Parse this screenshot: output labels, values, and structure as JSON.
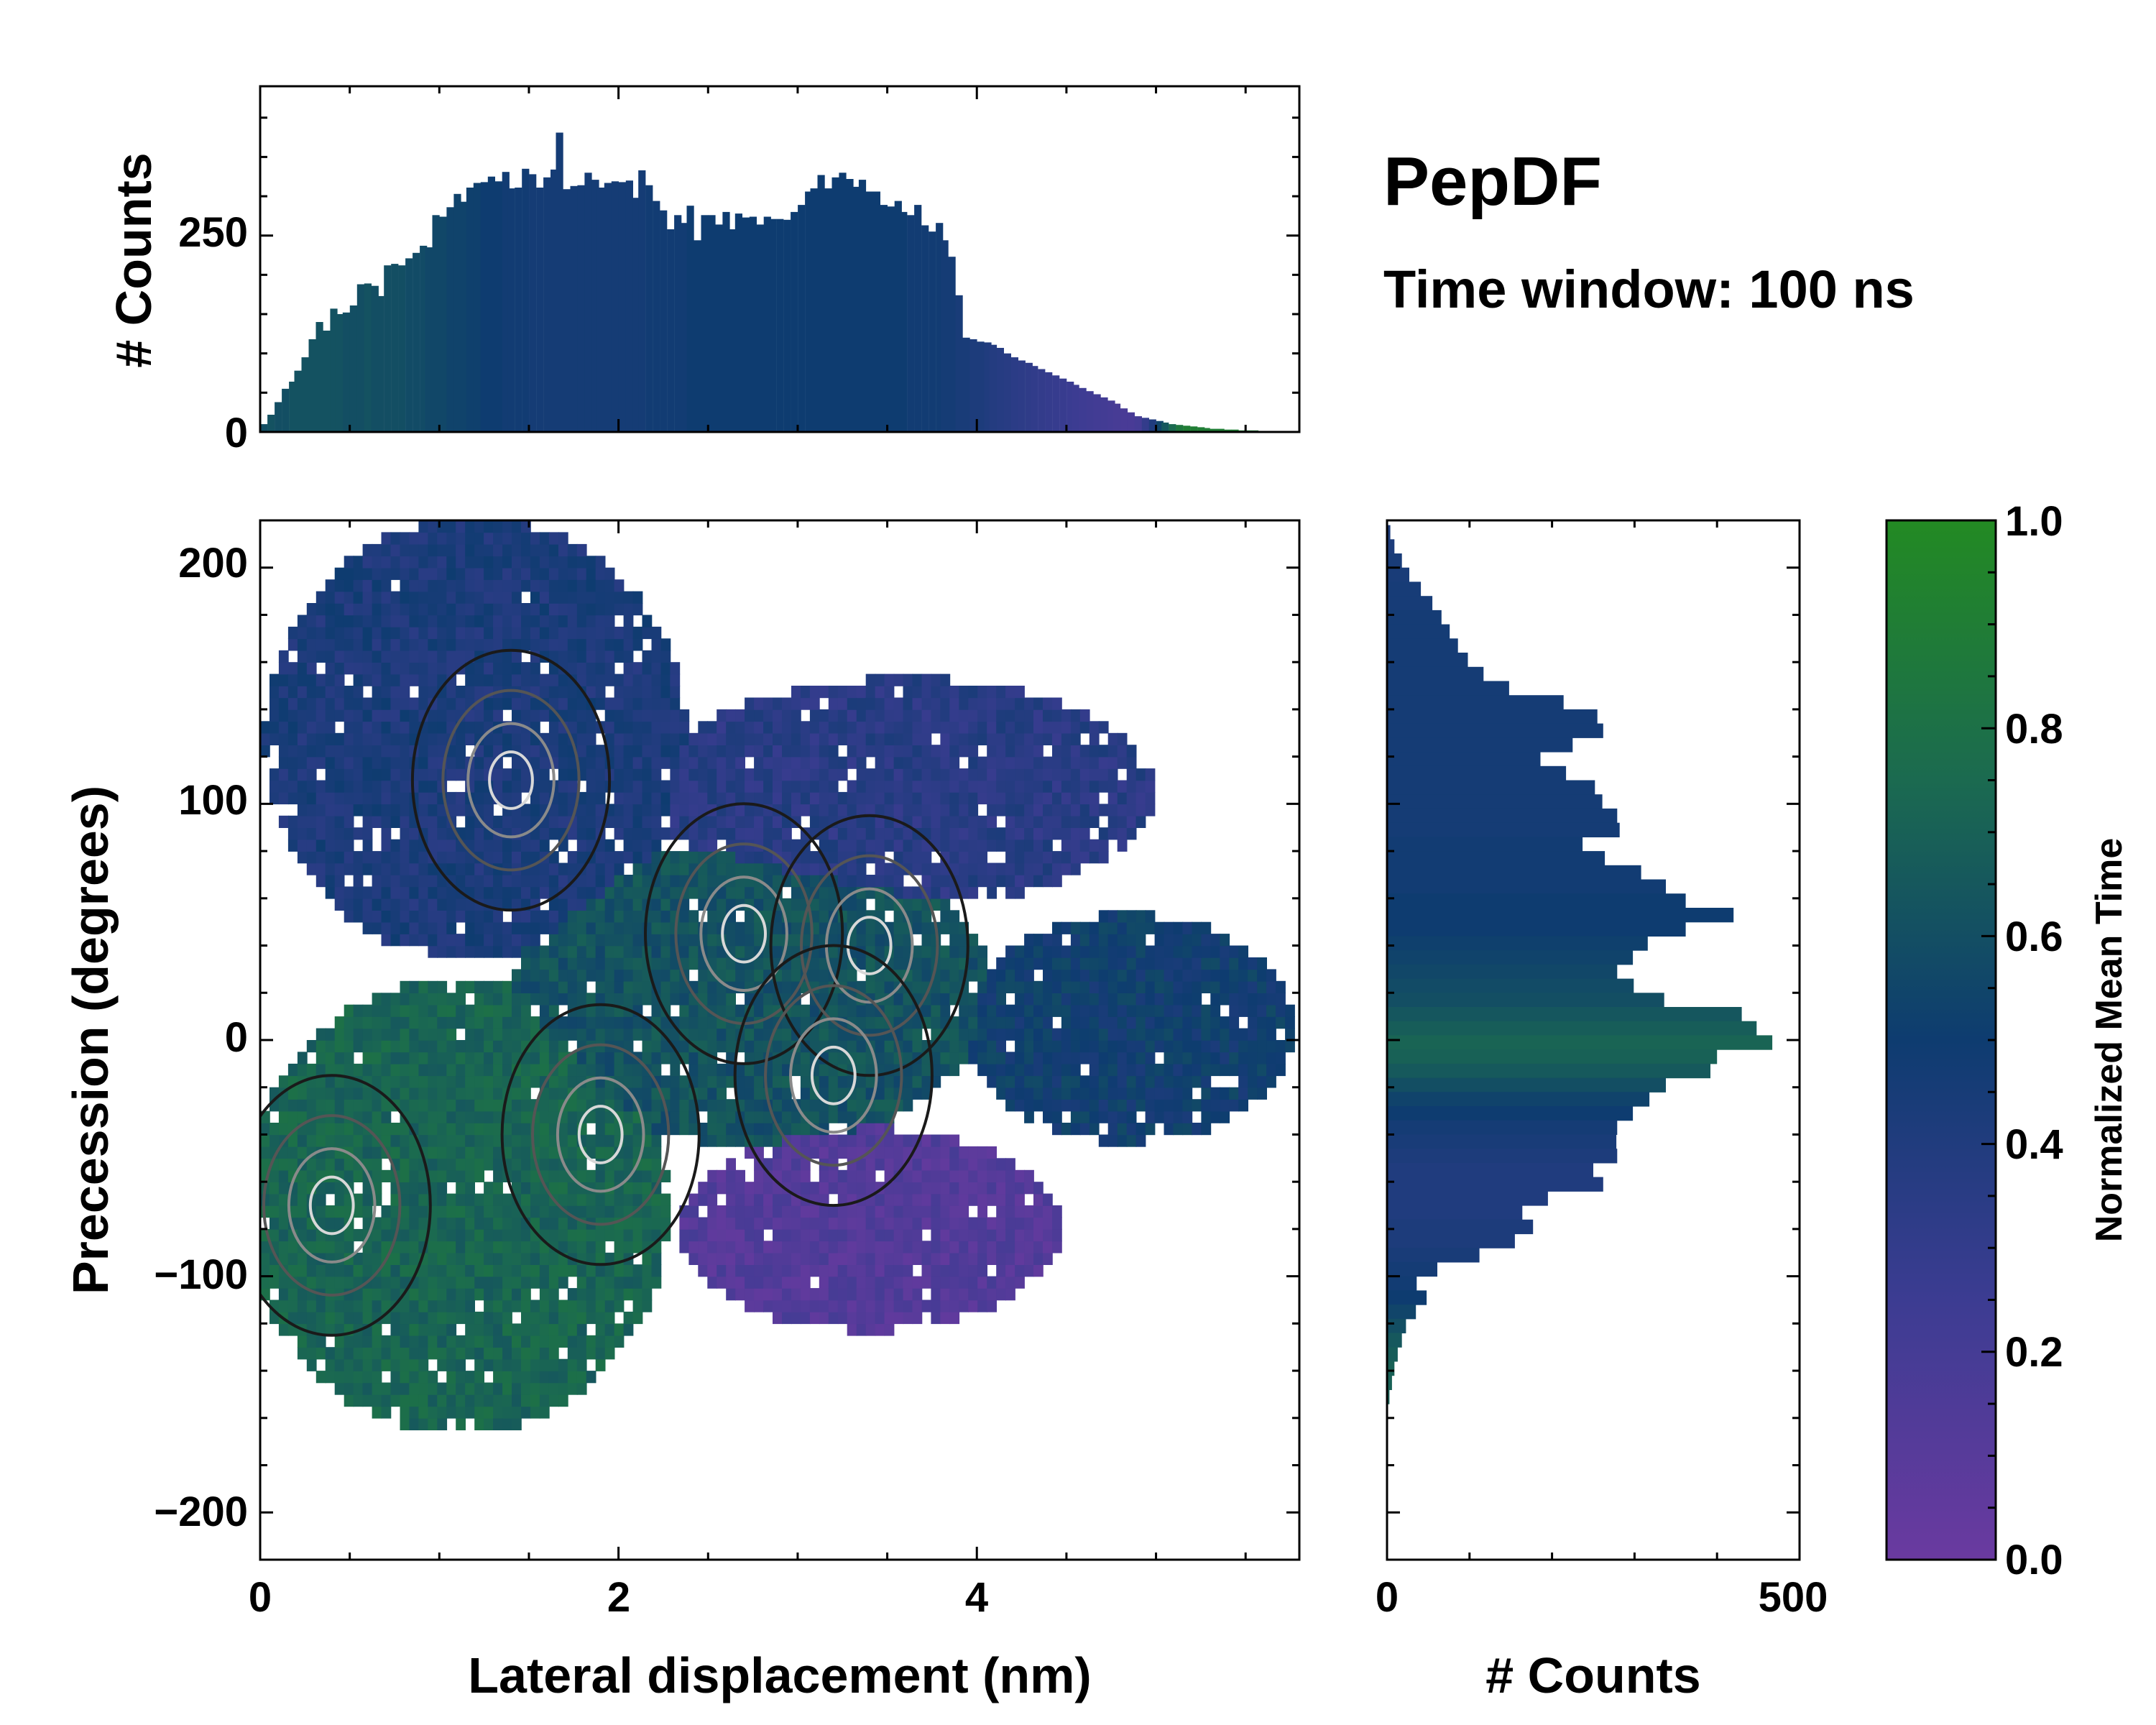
{
  "colors": {
    "low": "#6a3aa0",
    "mid": "#0d3c70",
    "high": "#238a23",
    "contour_outer": "#000000",
    "contour_inner": "#cfcfcf"
  },
  "figure": {
    "title": "PepDF",
    "subtitle": "Time window: 100 ns"
  },
  "chart_data": [
    {
      "id": "top-histogram",
      "type": "bar",
      "ylabel": "# Counts",
      "xlim": [
        0,
        5.8
      ],
      "ylim": [
        0,
        440
      ],
      "yticks": [
        "0",
        "250"
      ],
      "ytick_values": [
        0,
        250
      ],
      "note": "Histogram of lateral displacement, 150 bins; bars coloured by normalized mean time",
      "x": [
        0.02,
        0.06,
        0.1,
        0.14,
        0.18,
        0.21,
        0.25,
        0.29,
        0.33,
        0.37,
        0.41,
        0.44,
        0.48,
        0.52,
        0.56,
        0.6,
        0.64,
        0.67,
        0.71,
        0.75,
        0.79,
        0.83,
        0.87,
        0.91,
        0.94,
        0.98,
        1.02,
        1.06,
        1.1,
        1.14,
        1.17,
        1.21,
        1.25,
        1.29,
        1.33,
        1.37,
        1.4,
        1.44,
        1.48,
        1.52,
        1.56,
        1.6,
        1.64,
        1.67,
        1.71,
        1.75,
        1.79,
        1.83,
        1.87,
        1.9,
        1.94,
        1.98,
        2.02,
        2.06,
        2.1,
        2.13,
        2.17,
        2.21,
        2.25,
        2.29,
        2.33,
        2.37,
        2.4,
        2.44,
        2.48,
        2.52,
        2.56,
        2.6,
        2.63,
        2.67,
        2.71,
        2.75,
        2.79,
        2.83,
        2.86,
        2.9,
        2.94,
        2.98,
        3.02,
        3.06,
        3.09,
        3.13,
        3.17,
        3.21,
        3.25,
        3.29,
        3.33,
        3.36,
        3.4,
        3.44,
        3.48,
        3.52,
        3.56,
        3.59,
        3.63,
        3.67,
        3.71,
        3.75,
        3.79,
        3.82,
        3.86,
        3.9,
        3.94,
        3.98,
        4.02,
        4.06,
        4.09,
        4.13,
        4.17,
        4.21,
        4.25,
        4.29,
        4.32,
        4.36,
        4.4,
        4.44,
        4.48,
        4.52,
        4.55,
        4.59,
        4.63,
        4.67,
        4.71,
        4.75,
        4.78,
        4.82,
        4.86,
        4.9,
        4.94,
        4.98,
        5.02,
        5.05,
        5.09,
        5.13,
        5.17,
        5.21,
        5.25,
        5.28,
        5.32,
        5.36,
        5.4,
        5.44,
        5.48,
        5.51,
        5.55,
        5.59,
        5.63,
        5.67,
        5.71,
        5.75
      ],
      "values": [
        10,
        22,
        38,
        55,
        64,
        78,
        95,
        118,
        140,
        129,
        157,
        150,
        152,
        161,
        188,
        189,
        186,
        173,
        212,
        214,
        212,
        221,
        228,
        237,
        235,
        276,
        274,
        286,
        303,
        293,
        311,
        317,
        318,
        325,
        319,
        331,
        310,
        311,
        335,
        328,
        311,
        324,
        334,
        381,
        309,
        313,
        314,
        330,
        321,
        311,
        317,
        319,
        318,
        320,
        298,
        333,
        314,
        294,
        282,
        258,
        276,
        266,
        288,
        244,
        276,
        276,
        264,
        280,
        258,
        278,
        273,
        274,
        264,
        274,
        271,
        271,
        270,
        280,
        289,
        306,
        310,
        327,
        310,
        324,
        330,
        322,
        312,
        321,
        306,
        306,
        289,
        287,
        294,
        280,
        276,
        289,
        263,
        255,
        266,
        244,
        223,
        174,
        120,
        118,
        115,
        114,
        111,
        107,
        100,
        95,
        91,
        88,
        84,
        80,
        76,
        72,
        68,
        64,
        60,
        56,
        52,
        48,
        44,
        40,
        36,
        30,
        25,
        20,
        18,
        16,
        14,
        12,
        10,
        9,
        8,
        7,
        6,
        5,
        4,
        4,
        3,
        3,
        2,
        2,
        2,
        1,
        1,
        1,
        1,
        1
      ],
      "color_values": [
        0.6,
        0.62,
        0.6,
        0.6,
        0.62,
        0.62,
        0.62,
        0.62,
        0.62,
        0.62,
        0.62,
        0.62,
        0.6,
        0.6,
        0.6,
        0.62,
        0.6,
        0.6,
        0.6,
        0.6,
        0.6,
        0.58,
        0.58,
        0.58,
        0.56,
        0.56,
        0.56,
        0.54,
        0.54,
        0.54,
        0.52,
        0.52,
        0.5,
        0.5,
        0.5,
        0.48,
        0.48,
        0.48,
        0.48,
        0.46,
        0.46,
        0.46,
        0.46,
        0.46,
        0.46,
        0.46,
        0.46,
        0.46,
        0.46,
        0.46,
        0.46,
        0.46,
        0.46,
        0.46,
        0.46,
        0.46,
        0.48,
        0.48,
        0.48,
        0.48,
        0.48,
        0.48,
        0.5,
        0.5,
        0.5,
        0.5,
        0.5,
        0.5,
        0.5,
        0.5,
        0.5,
        0.5,
        0.5,
        0.5,
        0.5,
        0.5,
        0.5,
        0.5,
        0.5,
        0.5,
        0.5,
        0.5,
        0.5,
        0.5,
        0.5,
        0.5,
        0.5,
        0.5,
        0.5,
        0.5,
        0.5,
        0.5,
        0.5,
        0.5,
        0.48,
        0.48,
        0.48,
        0.48,
        0.48,
        0.46,
        0.46,
        0.44,
        0.44,
        0.42,
        0.42,
        0.4,
        0.38,
        0.37,
        0.36,
        0.34,
        0.33,
        0.32,
        0.31,
        0.3,
        0.29,
        0.28,
        0.27,
        0.26,
        0.25,
        0.24,
        0.23,
        0.22,
        0.21,
        0.2,
        0.19,
        0.18,
        0.18,
        0.2,
        0.3,
        0.4,
        0.55,
        0.65,
        0.75,
        0.85,
        0.9,
        0.9,
        0.9,
        0.9,
        0.9,
        0.9,
        0.9,
        0.9,
        0.9,
        0.9,
        0.9,
        0.9,
        0.9,
        0.9,
        0.9,
        0.9
      ]
    },
    {
      "id": "main-heatmap",
      "type": "heatmap",
      "xlabel": "Lateral displacement (nm)",
      "ylabel": "Precession (degrees)",
      "xlim": [
        0,
        5.8
      ],
      "ylim": [
        -220,
        220
      ],
      "xticks": [
        "0",
        "2",
        "4"
      ],
      "xtick_values": [
        0,
        2,
        4
      ],
      "yticks": [
        "200",
        "100",
        "0",
        "−100",
        "−200"
      ],
      "ytick_values": [
        200,
        100,
        0,
        -100,
        -200
      ],
      "note": "2D histogram coloured by normalized mean time with density contours",
      "regions": [
        {
          "name": "upper-left lobe",
          "x_range": [
            0.1,
            2.3
          ],
          "y_range": [
            40,
            215
          ],
          "time": 0.42
        },
        {
          "name": "upper-right lobe",
          "x_range": [
            2.3,
            4.9
          ],
          "y_range": [
            60,
            150
          ],
          "time": 0.35
        },
        {
          "name": "central core",
          "x_range": [
            1.5,
            4.0
          ],
          "y_range": [
            -40,
            80
          ],
          "time": 0.62
        },
        {
          "name": "left lower lobe",
          "x_range": [
            0.0,
            2.2
          ],
          "y_range": [
            -160,
            20
          ],
          "time": 0.72
        },
        {
          "name": "right tail",
          "x_range": [
            4.0,
            5.7
          ],
          "y_range": [
            -40,
            50
          ],
          "time": 0.5
        },
        {
          "name": "lower-right lobe",
          "x_range": [
            2.4,
            4.4
          ],
          "y_range": [
            -120,
            -40
          ],
          "time": 0.12
        }
      ],
      "density_peaks": [
        {
          "x": 1.4,
          "y": 110
        },
        {
          "x": 2.7,
          "y": 45
        },
        {
          "x": 3.4,
          "y": 40
        },
        {
          "x": 3.2,
          "y": -15
        },
        {
          "x": 1.9,
          "y": -40
        },
        {
          "x": 0.4,
          "y": -70
        }
      ]
    },
    {
      "id": "right-histogram",
      "type": "bar",
      "orientation": "horizontal",
      "xlabel": "# Counts",
      "xlim": [
        0,
        500
      ],
      "xticks": [
        "0",
        "500"
      ],
      "xtick_values": [
        0,
        500
      ],
      "ylim": [
        -220,
        220
      ],
      "note": "Histogram of precession, bars coloured by normalized mean time",
      "y": [
        215,
        209,
        203,
        197,
        191,
        185,
        179,
        173,
        167,
        161,
        155,
        149,
        143,
        137,
        131,
        125,
        119,
        113,
        107,
        101,
        95,
        89,
        83,
        77,
        71,
        65,
        59,
        53,
        47,
        41,
        35,
        29,
        23,
        17,
        11,
        5,
        -1,
        -7,
        -13,
        -19,
        -25,
        -31,
        -37,
        -43,
        -49,
        -55,
        -61,
        -67,
        -73,
        -79,
        -85,
        -91,
        -97,
        -103,
        -109,
        -115,
        -121,
        -127,
        -133,
        -139,
        -145,
        -151,
        -157
      ],
      "values": [
        4,
        9,
        18,
        27,
        41,
        55,
        66,
        76,
        86,
        98,
        117,
        148,
        214,
        255,
        262,
        225,
        186,
        217,
        252,
        261,
        279,
        282,
        237,
        264,
        308,
        338,
        362,
        420,
        362,
        316,
        298,
        279,
        299,
        336,
        430,
        448,
        467,
        400,
        392,
        338,
        318,
        298,
        279,
        278,
        279,
        250,
        262,
        195,
        164,
        177,
        155,
        112,
        61,
        36,
        48,
        35,
        23,
        18,
        13,
        9,
        6,
        3,
        1
      ],
      "color_values": [
        0.42,
        0.42,
        0.44,
        0.44,
        0.45,
        0.45,
        0.46,
        0.46,
        0.46,
        0.46,
        0.46,
        0.46,
        0.46,
        0.46,
        0.46,
        0.46,
        0.46,
        0.46,
        0.46,
        0.46,
        0.46,
        0.46,
        0.48,
        0.48,
        0.48,
        0.48,
        0.5,
        0.5,
        0.5,
        0.52,
        0.54,
        0.56,
        0.58,
        0.6,
        0.64,
        0.68,
        0.72,
        0.7,
        0.66,
        0.6,
        0.54,
        0.5,
        0.46,
        0.44,
        0.42,
        0.4,
        0.4,
        0.4,
        0.4,
        0.42,
        0.42,
        0.44,
        0.46,
        0.48,
        0.5,
        0.55,
        0.6,
        0.65,
        0.68,
        0.7,
        0.7,
        0.7,
        0.7
      ]
    },
    {
      "id": "colorbar",
      "type": "colorbar",
      "label": "Normalized Mean Time",
      "range": [
        0,
        1
      ],
      "ticks": [
        "0.0",
        "0.2",
        "0.4",
        "0.6",
        "0.8",
        "1.0"
      ],
      "tick_values": [
        0,
        0.2,
        0.4,
        0.6,
        0.8,
        1.0
      ]
    }
  ]
}
